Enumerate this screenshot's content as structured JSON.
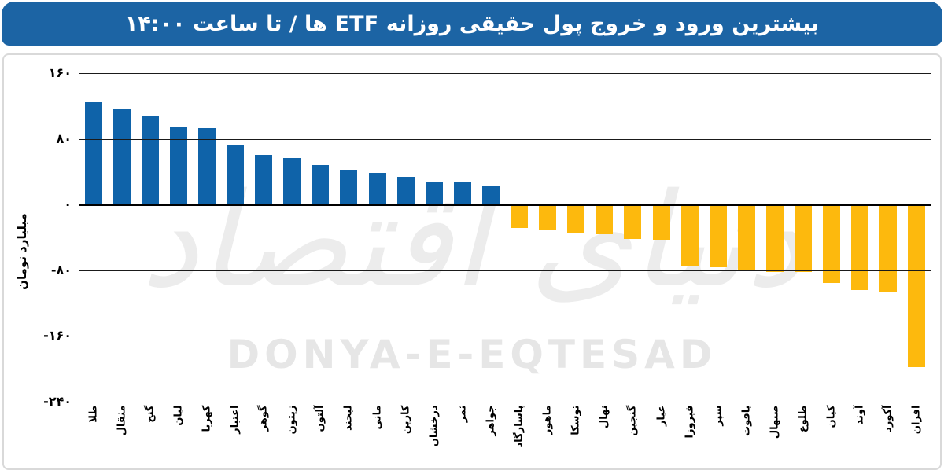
{
  "header": {
    "title": "بیشترین ورود و خروج پول حقیقی روزانه ETF ها / تا ساعت ۱۴:۰۰"
  },
  "watermark": {
    "persian": "دنیای اقتصاد",
    "latin": "DONYA-E-EQTESAD"
  },
  "colors": {
    "header_bg": "#1c64a4",
    "positive_bar": "#0f63a9",
    "negative_bar": "#fdb90d",
    "gridline": "#1a1a1a"
  },
  "chart_data": {
    "type": "bar",
    "title": "بیشترین ورود و خروج پول حقیقی روزانه ETF ها / تا ساعت ۱۴:۰۰",
    "xlabel": "",
    "ylabel": "میلیارد تومان",
    "ylim": [
      -240,
      160
    ],
    "grid": true,
    "legend": false,
    "categories": [
      "طلا",
      "مثقال",
      "گنج",
      "لیان",
      "کهربا",
      "اعتبار",
      "گوهر",
      "زیتون",
      "آلتون",
      "لبخند",
      "مانی",
      "کارین",
      "درخشان",
      "ثمر",
      "جواهر",
      "پاسارگاد",
      "ماهور",
      "توسکا",
      "نهال",
      "گنجین",
      "عیار",
      "فیروزا",
      "سپر",
      "یاقوت",
      "صنهال",
      "طلوع",
      "کیان",
      "آوند",
      "آکورد",
      "افران"
    ],
    "values": [
      125,
      116,
      107,
      94,
      93,
      73,
      60,
      57,
      48,
      42,
      38,
      34,
      28,
      27,
      23,
      -29,
      -32,
      -35,
      -36,
      -42,
      -43,
      -75,
      -77,
      -81,
      -82,
      -82,
      -96,
      -104,
      -107,
      -198
    ],
    "yticks": [
      {
        "value": 160,
        "label": "۱۶۰"
      },
      {
        "value": 80,
        "label": "۸۰"
      },
      {
        "value": 0,
        "label": "۰"
      },
      {
        "value": -80,
        "label": "-۸۰"
      },
      {
        "value": -160,
        "label": "-۱۶۰"
      },
      {
        "value": -240,
        "label": "-۲۴۰"
      }
    ]
  }
}
